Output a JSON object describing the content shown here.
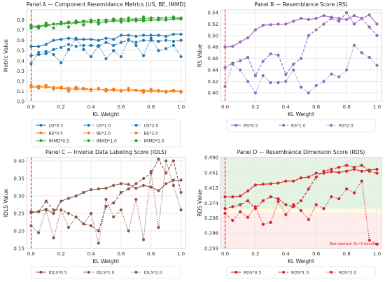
{
  "chart_data": [
    {
      "type": "line",
      "title": "Panel A — Component Resemblance Metrics (US, BE, IMMD)",
      "xlabel": "KL Weight",
      "ylabel": "Metric Value",
      "xlim": [
        -0.03,
        1.03
      ],
      "ylim": [
        0.0,
        0.9
      ],
      "xticks": [
        0.0,
        0.2,
        0.4,
        0.6,
        0.8,
        1.0
      ],
      "xtick_labels": [
        "0.0",
        "0.2",
        "0.4",
        "0.6",
        "0.8",
        "1.0"
      ],
      "yticks": [
        0.0,
        0.1,
        0.2,
        0.3,
        0.4,
        0.5,
        0.6,
        0.7,
        0.8
      ],
      "ytick_labels": [
        "0.0",
        "0.1",
        "0.2",
        "0.3",
        "0.4",
        "0.5",
        "0.6",
        "0.7",
        "0.8"
      ],
      "grid": true,
      "legend_position": "bottom-outside",
      "reference_line": {
        "x": 0.0,
        "color": "#ff0000",
        "style": "dashed"
      },
      "x": [
        0.0,
        0.05,
        0.1,
        0.15,
        0.2,
        0.25,
        0.3,
        0.35,
        0.4,
        0.45,
        0.5,
        0.55,
        0.6,
        0.65,
        0.7,
        0.75,
        0.8,
        0.85,
        0.9,
        0.95,
        1.0
      ],
      "series": [
        {
          "name": "US*0.5",
          "color": "#1f77b4",
          "style": "solid",
          "values": [
            0.54,
            0.54,
            0.56,
            0.6,
            0.61,
            0.62,
            0.61,
            0.61,
            0.61,
            0.6,
            0.62,
            0.61,
            0.65,
            0.65,
            0.64,
            0.65,
            0.65,
            0.65,
            0.64,
            0.66,
            0.66
          ]
        },
        {
          "name": "US*1.0",
          "color": "#1f77b4",
          "style": "dashed",
          "values": [
            0.45,
            0.46,
            0.47,
            0.51,
            0.53,
            0.56,
            0.54,
            0.55,
            0.55,
            0.54,
            0.58,
            0.55,
            0.58,
            0.6,
            0.58,
            0.6,
            0.6,
            0.59,
            0.6,
            0.59,
            0.6
          ]
        },
        {
          "name": "US*2.0",
          "color": "#1f77b4",
          "style": "dotted",
          "values": [
            0.37,
            0.48,
            0.49,
            0.46,
            0.38,
            0.51,
            0.62,
            0.51,
            0.44,
            0.55,
            0.42,
            0.5,
            0.44,
            0.61,
            0.55,
            0.45,
            0.62,
            0.5,
            0.52,
            0.55,
            0.44
          ]
        },
        {
          "name": "BE*0.5",
          "color": "#ff7f0e",
          "style": "solid",
          "values": [
            0.14,
            0.14,
            0.14,
            0.13,
            0.13,
            0.12,
            0.12,
            0.12,
            0.12,
            0.12,
            0.11,
            0.11,
            0.11,
            0.11,
            0.11,
            0.1,
            0.1,
            0.1,
            0.1,
            0.1,
            0.1
          ]
        },
        {
          "name": "BE*1.0",
          "color": "#ff7f0e",
          "style": "dashed",
          "values": [
            0.15,
            0.15,
            0.15,
            0.14,
            0.14,
            0.13,
            0.13,
            0.13,
            0.12,
            0.12,
            0.12,
            0.12,
            0.11,
            0.12,
            0.11,
            0.11,
            0.11,
            0.11,
            0.1,
            0.11,
            0.1
          ]
        },
        {
          "name": "BE*2.0",
          "color": "#ff7f0e",
          "style": "dotted",
          "values": [
            0.16,
            0.13,
            0.16,
            0.12,
            0.14,
            0.1,
            0.14,
            0.12,
            0.11,
            0.13,
            0.1,
            0.12,
            0.1,
            0.13,
            0.11,
            0.09,
            0.12,
            0.1,
            0.09,
            0.11,
            0.09
          ]
        },
        {
          "name": "IMMD*0.5",
          "color": "#2ca02c",
          "style": "solid",
          "values": [
            0.74,
            0.74,
            0.75,
            0.76,
            0.76,
            0.77,
            0.77,
            0.78,
            0.78,
            0.78,
            0.78,
            0.79,
            0.79,
            0.79,
            0.8,
            0.79,
            0.8,
            0.8,
            0.8,
            0.81,
            0.81
          ]
        },
        {
          "name": "IMMD*1.0",
          "color": "#2ca02c",
          "style": "dashed",
          "values": [
            0.72,
            0.73,
            0.74,
            0.76,
            0.77,
            0.78,
            0.78,
            0.79,
            0.79,
            0.8,
            0.8,
            0.8,
            0.81,
            0.81,
            0.81,
            0.81,
            0.82,
            0.82,
            0.82,
            0.82,
            0.82
          ]
        },
        {
          "name": "IMMD*2.0",
          "color": "#2ca02c",
          "style": "dotted",
          "values": [
            0.75,
            0.72,
            0.77,
            0.72,
            0.78,
            0.73,
            0.79,
            0.75,
            0.8,
            0.76,
            0.79,
            0.81,
            0.78,
            0.82,
            0.79,
            0.83,
            0.8,
            0.81,
            0.82,
            0.83,
            0.81
          ]
        }
      ]
    },
    {
      "type": "line",
      "title": "Panel B — Resemblance Score (RS)",
      "xlabel": "KL Weight",
      "ylabel": "RS Value",
      "xlim": [
        -0.03,
        1.03
      ],
      "ylim": [
        0.385,
        0.545
      ],
      "xticks": [
        0.0,
        0.2,
        0.4,
        0.6,
        0.8,
        1.0
      ],
      "xtick_labels": [
        "0.0",
        "0.2",
        "0.4",
        "0.6",
        "0.8",
        "1.0"
      ],
      "yticks": [
        0.4,
        0.42,
        0.44,
        0.46,
        0.48,
        0.5,
        0.52,
        0.54
      ],
      "ytick_labels": [
        "0.40",
        "0.42",
        "0.44",
        "0.46",
        "0.48",
        "0.50",
        "0.52",
        "0.54"
      ],
      "grid": true,
      "legend_position": "bottom-outside",
      "reference_line": {
        "x": 0.0,
        "color": "#ff0000",
        "style": "dashed"
      },
      "x": [
        0.0,
        0.05,
        0.1,
        0.15,
        0.2,
        0.25,
        0.3,
        0.35,
        0.4,
        0.45,
        0.5,
        0.55,
        0.6,
        0.65,
        0.7,
        0.75,
        0.8,
        0.85,
        0.9,
        0.95,
        1.0
      ],
      "series": [
        {
          "name": "RS*0.5",
          "color": "#9467bd",
          "style": "solid",
          "values": [
            0.48,
            0.481,
            0.489,
            0.496,
            0.51,
            0.518,
            0.519,
            0.52,
            0.52,
            0.525,
            0.53,
            0.528,
            0.53,
            0.535,
            0.532,
            0.53,
            0.528,
            0.535,
            0.53,
            0.536,
            0.52
          ]
        },
        {
          "name": "RS*1.0",
          "color": "#9467bd",
          "style": "dashed",
          "values": [
            0.444,
            0.452,
            0.456,
            0.462,
            0.43,
            0.455,
            0.468,
            0.466,
            0.432,
            0.45,
            0.46,
            0.5,
            0.51,
            0.52,
            0.53,
            0.525,
            0.54,
            0.52,
            0.53,
            0.515,
            0.5
          ]
        },
        {
          "name": "RS*2.0",
          "color": "#9467bd",
          "style": "dotted",
          "values": [
            0.411,
            0.45,
            0.44,
            0.42,
            0.4,
            0.43,
            0.418,
            0.418,
            0.42,
            0.44,
            0.41,
            0.4,
            0.413,
            0.42,
            0.433,
            0.428,
            0.44,
            0.483,
            0.47,
            0.462,
            0.448
          ]
        }
      ]
    },
    {
      "type": "line",
      "title": "Panel C — Inverse Data Labeling Score (IDLS)",
      "xlabel": "KL Weight",
      "ylabel": "IDLS Value",
      "xlim": [
        -0.03,
        1.03
      ],
      "ylim": [
        0.15,
        0.41
      ],
      "xticks": [
        0.0,
        0.2,
        0.4,
        0.6,
        0.8,
        1.0
      ],
      "xtick_labels": [
        "0.0",
        "0.2",
        "0.4",
        "0.6",
        "0.8",
        "1.0"
      ],
      "yticks": [
        0.15,
        0.2,
        0.25,
        0.3,
        0.35,
        0.4
      ],
      "ytick_labels": [
        "0.15",
        "0.20",
        "0.25",
        "0.30",
        "0.35",
        "0.40"
      ],
      "grid": true,
      "legend_position": "bottom-outside",
      "reference_line": {
        "x": 0.0,
        "color": "#ff0000",
        "style": "dashed"
      },
      "x": [
        0.0,
        0.05,
        0.1,
        0.15,
        0.2,
        0.25,
        0.3,
        0.35,
        0.4,
        0.45,
        0.5,
        0.55,
        0.6,
        0.65,
        0.7,
        0.75,
        0.8,
        0.85,
        0.9,
        0.95,
        1.0
      ],
      "series": [
        {
          "name": "IDLS*0.5",
          "color": "#8c564b",
          "style": "solid",
          "values": [
            0.252,
            0.255,
            0.262,
            0.25,
            0.285,
            0.293,
            0.3,
            0.31,
            0.318,
            0.32,
            0.322,
            0.33,
            0.335,
            0.333,
            0.322,
            0.33,
            0.325,
            0.315,
            0.335,
            0.345,
            0.345
          ]
        },
        {
          "name": "IDLS*1.0",
          "color": "#8c564b",
          "style": "dashed",
          "values": [
            0.255,
            0.255,
            0.285,
            0.26,
            0.26,
            0.25,
            0.24,
            0.22,
            0.215,
            0.2,
            0.27,
            0.28,
            0.31,
            0.32,
            0.335,
            0.35,
            0.365,
            0.405,
            0.365,
            0.4,
            0.31
          ]
        },
        {
          "name": "IDLS*2.0",
          "color": "#8c564b",
          "style": "dotted",
          "values": [
            0.215,
            0.195,
            0.26,
            0.18,
            0.26,
            0.21,
            0.24,
            0.22,
            0.25,
            0.165,
            0.29,
            0.24,
            0.26,
            0.2,
            0.29,
            0.175,
            0.37,
            0.21,
            0.4,
            0.33,
            0.26
          ]
        }
      ]
    },
    {
      "type": "line",
      "title": "Panel D — Resemblance Dimension Score (RDS)",
      "xlabel": "KL Weight",
      "ylabel": "RDS Value",
      "xlim": [
        -0.03,
        1.03
      ],
      "ylim": [
        0.259,
        0.49
      ],
      "xticks": [
        0.0,
        0.2,
        0.4,
        0.6,
        0.8,
        1.0
      ],
      "xtick_labels": [
        "0.0",
        "0.2",
        "0.4",
        "0.6",
        "0.8",
        "1.0"
      ],
      "yticks": [
        0.259,
        0.298,
        0.336,
        0.374,
        0.413,
        0.451,
        0.49
      ],
      "ytick_labels": [
        "0.259",
        "0.298",
        "0.336",
        "0.374",
        "0.413",
        "0.451",
        "0.490"
      ],
      "grid": true,
      "legend_position": "bottom-outside",
      "reference_line": {
        "x": 0.0,
        "color": "#ff0000",
        "style": "dashed"
      },
      "bands": [
        {
          "from": 0.36,
          "to": 0.49,
          "color": "#2ca02c"
        },
        {
          "from": 0.35,
          "to": 0.36,
          "color": "#ffd400"
        },
        {
          "from": 0.259,
          "to": 0.35,
          "color": "#ff6666"
        }
      ],
      "annotation": "Red dashed: KL=0 baseline",
      "x": [
        0.0,
        0.05,
        0.1,
        0.15,
        0.2,
        0.25,
        0.3,
        0.35,
        0.4,
        0.45,
        0.5,
        0.55,
        0.6,
        0.65,
        0.7,
        0.75,
        0.8,
        0.85,
        0.9,
        0.95,
        1.0
      ],
      "series": [
        {
          "name": "RDS*0.5",
          "color": "#d62728",
          "style": "solid",
          "values": [
            0.39,
            0.39,
            0.392,
            0.405,
            0.42,
            0.422,
            0.423,
            0.425,
            0.43,
            0.43,
            0.438,
            0.44,
            0.45,
            0.45,
            0.454,
            0.452,
            0.455,
            0.46,
            0.455,
            0.458,
            0.46
          ]
        },
        {
          "name": "RDS*1.0",
          "color": "#d62728",
          "style": "dashed",
          "values": [
            0.36,
            0.365,
            0.37,
            0.38,
            0.36,
            0.38,
            0.39,
            0.385,
            0.37,
            0.365,
            0.38,
            0.41,
            0.44,
            0.455,
            0.46,
            0.465,
            0.47,
            0.465,
            0.47,
            0.455,
            0.45
          ]
        },
        {
          "name": "RDS*2.0",
          "color": "#d62728",
          "style": "dotted",
          "values": [
            0.348,
            0.33,
            0.352,
            0.338,
            0.365,
            0.32,
            0.325,
            0.378,
            0.345,
            0.37,
            0.355,
            0.332,
            0.37,
            0.36,
            0.39,
            0.385,
            0.41,
            0.4,
            0.43,
            0.28,
            0.27
          ]
        }
      ]
    }
  ]
}
